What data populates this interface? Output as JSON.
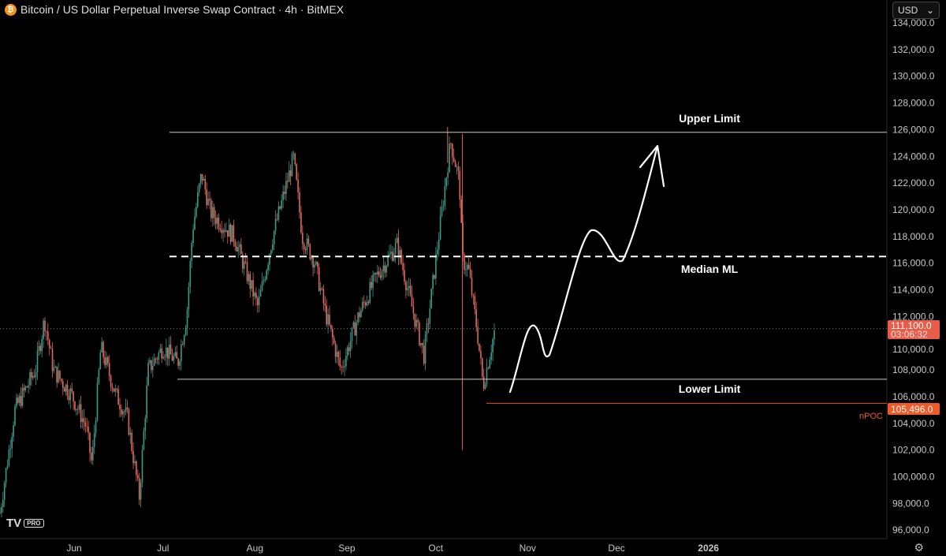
{
  "header": {
    "title": "Bitcoin / US Dollar Perpetual Inverse Swap Contract · 4h · BitMEX",
    "icon": "bitcoin-icon",
    "currency": "USD"
  },
  "footer": {
    "logo": "TV",
    "logo_badge": "PRO",
    "settings_icon": "gear-icon"
  },
  "chart_data": {
    "type": "candlestick",
    "ylim": [
      96000,
      134000
    ],
    "y_ticks": [
      "96,000.0",
      "98,000.0",
      "100,000.0",
      "102,000.0",
      "104,000.0",
      "106,000.0",
      "108,000.0",
      "110,000.0",
      "112,000.0",
      "114,000.0",
      "116,000.0",
      "118,000.0",
      "120,000.0",
      "122,000.0",
      "124,000.0",
      "126,000.0",
      "128,000.0",
      "130,000.0",
      "132,000.0",
      "134,000.0"
    ],
    "x_ticks": [
      {
        "label": "Jun",
        "date": "2025-06-01"
      },
      {
        "label": "Jul",
        "date": "2025-07-01"
      },
      {
        "label": "Aug",
        "date": "2025-08-01"
      },
      {
        "label": "Sep",
        "date": "2025-09-01"
      },
      {
        "label": "Oct",
        "date": "2025-10-01"
      },
      {
        "label": "Nov",
        "date": "2025-11-01"
      },
      {
        "label": "Dec",
        "date": "2025-12-01"
      },
      {
        "label": "2026",
        "date": "2026-01-01"
      }
    ],
    "price_path": [
      [
        "2025-05-07",
        97300
      ],
      [
        "2025-05-12",
        105000
      ],
      [
        "2025-05-19",
        108000
      ],
      [
        "2025-05-22",
        111800
      ],
      [
        "2025-05-25",
        108000
      ],
      [
        "2025-05-31",
        106200
      ],
      [
        "2025-06-05",
        103800
      ],
      [
        "2025-06-07",
        100900
      ],
      [
        "2025-06-10",
        109700
      ],
      [
        "2025-06-15",
        106200
      ],
      [
        "2025-06-19",
        104400
      ],
      [
        "2025-06-23",
        98500
      ],
      [
        "2025-06-26",
        108000
      ],
      [
        "2025-07-01",
        109700
      ],
      [
        "2025-07-06",
        108500
      ],
      [
        "2025-07-09",
        112100
      ],
      [
        "2025-07-11",
        118600
      ],
      [
        "2025-07-14",
        122700
      ],
      [
        "2025-07-17",
        119800
      ],
      [
        "2025-07-25",
        118000
      ],
      [
        "2025-08-02",
        112700
      ],
      [
        "2025-08-07",
        118000
      ],
      [
        "2025-08-14",
        123900
      ],
      [
        "2025-08-17",
        118000
      ],
      [
        "2025-08-21",
        116200
      ],
      [
        "2025-08-25",
        112100
      ],
      [
        "2025-08-30",
        108000
      ],
      [
        "2025-09-05",
        112100
      ],
      [
        "2025-09-11",
        115000
      ],
      [
        "2025-09-18",
        117400
      ],
      [
        "2025-09-23",
        112700
      ],
      [
        "2025-09-27",
        109100
      ],
      [
        "2025-10-02",
        118000
      ],
      [
        "2025-10-06",
        125100
      ],
      [
        "2025-10-09",
        122100
      ],
      [
        "2025-10-10",
        116200
      ],
      [
        "2025-10-12",
        115600
      ],
      [
        "2025-10-15",
        110900
      ],
      [
        "2025-10-17",
        106800
      ],
      [
        "2025-10-21",
        111100
      ]
    ],
    "extremes": {
      "flash_crash_low": 102000,
      "oct_high": 126200
    },
    "levels": [
      {
        "name": "Upper Limit",
        "price": 125800,
        "style": "solid",
        "color": "#cccccc"
      },
      {
        "name": "Median ML",
        "price": 116500,
        "style": "dashed",
        "color": "#ffffff"
      },
      {
        "name": "Lower Limit",
        "price": 107300,
        "style": "solid",
        "color": "#cccccc"
      },
      {
        "name": "nPOC",
        "price": 105496,
        "style": "solid",
        "color": "#e8502a"
      }
    ],
    "last_price": {
      "value": "111,100.0",
      "countdown": "03:06:32",
      "price": 111100,
      "color": "#e85c4a"
    },
    "npoc_label": {
      "value": "105,496.0",
      "text": "nPOC",
      "color": "#f05a28"
    },
    "colors": {
      "up": "#3d9a8b",
      "down": "#e0675a"
    }
  }
}
